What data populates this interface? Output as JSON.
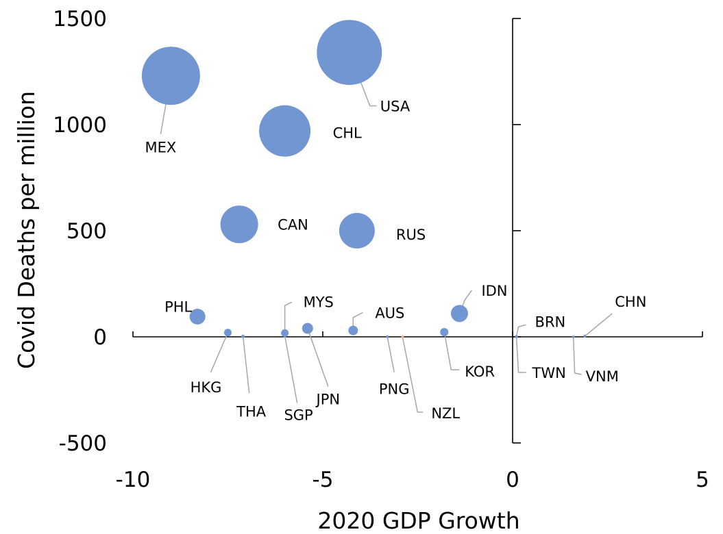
{
  "chart_data": {
    "type": "scatter",
    "variant": "bubble",
    "title": "",
    "xlabel": "2020 GDP Growth",
    "ylabel": "Covid Deaths per million",
    "xlim": [
      -10,
      5
    ],
    "ylim": [
      -500,
      1500
    ],
    "x_ticks": [
      "-10",
      "-5",
      "0",
      "5"
    ],
    "y_ticks": [
      "-500",
      "0",
      "500",
      "1000",
      "1500"
    ],
    "grid": false,
    "legend": "none",
    "colors": {
      "bubble": "#7196d2",
      "highlight": "#f4b183",
      "leader": "#a6a6a6"
    },
    "points": [
      {
        "label": "MEX",
        "x": -9.0,
        "y": 1230,
        "size": 85
      },
      {
        "label": "USA",
        "x": -4.3,
        "y": 1340,
        "size": 95
      },
      {
        "label": "CHL",
        "x": -6.0,
        "y": 970,
        "size": 75
      },
      {
        "label": "CAN",
        "x": -7.2,
        "y": 530,
        "size": 55
      },
      {
        "label": "RUS",
        "x": -4.1,
        "y": 500,
        "size": 52
      },
      {
        "label": "PHL",
        "x": -8.3,
        "y": 95,
        "size": 23
      },
      {
        "label": "IDN",
        "x": -1.4,
        "y": 110,
        "size": 25
      },
      {
        "label": "HKG",
        "x": -7.5,
        "y": 20,
        "size": 11
      },
      {
        "label": "THA",
        "x": -7.1,
        "y": 2,
        "size": 5
      },
      {
        "label": "MYS",
        "x": -6.0,
        "y": 18,
        "size": 11
      },
      {
        "label": "SGP",
        "x": -6.0,
        "y": 5,
        "size": 5
      },
      {
        "label": "JPN",
        "x": -5.4,
        "y": 40,
        "size": 16
      },
      {
        "label": "AUS",
        "x": -4.2,
        "y": 30,
        "size": 14
      },
      {
        "label": "PNG",
        "x": -3.3,
        "y": 1,
        "size": 4
      },
      {
        "label": "NZL",
        "x": -2.9,
        "y": 0,
        "size": 4,
        "highlight": true
      },
      {
        "label": "KOR",
        "x": -1.8,
        "y": 22,
        "size": 12
      },
      {
        "label": "BRN",
        "x": 0.1,
        "y": 2,
        "size": 4
      },
      {
        "label": "TWN",
        "x": 0.1,
        "y": 0,
        "size": 4
      },
      {
        "label": "VNM",
        "x": 1.6,
        "y": 0,
        "size": 4
      },
      {
        "label": "CHN",
        "x": 1.9,
        "y": 3,
        "size": 4
      }
    ]
  }
}
